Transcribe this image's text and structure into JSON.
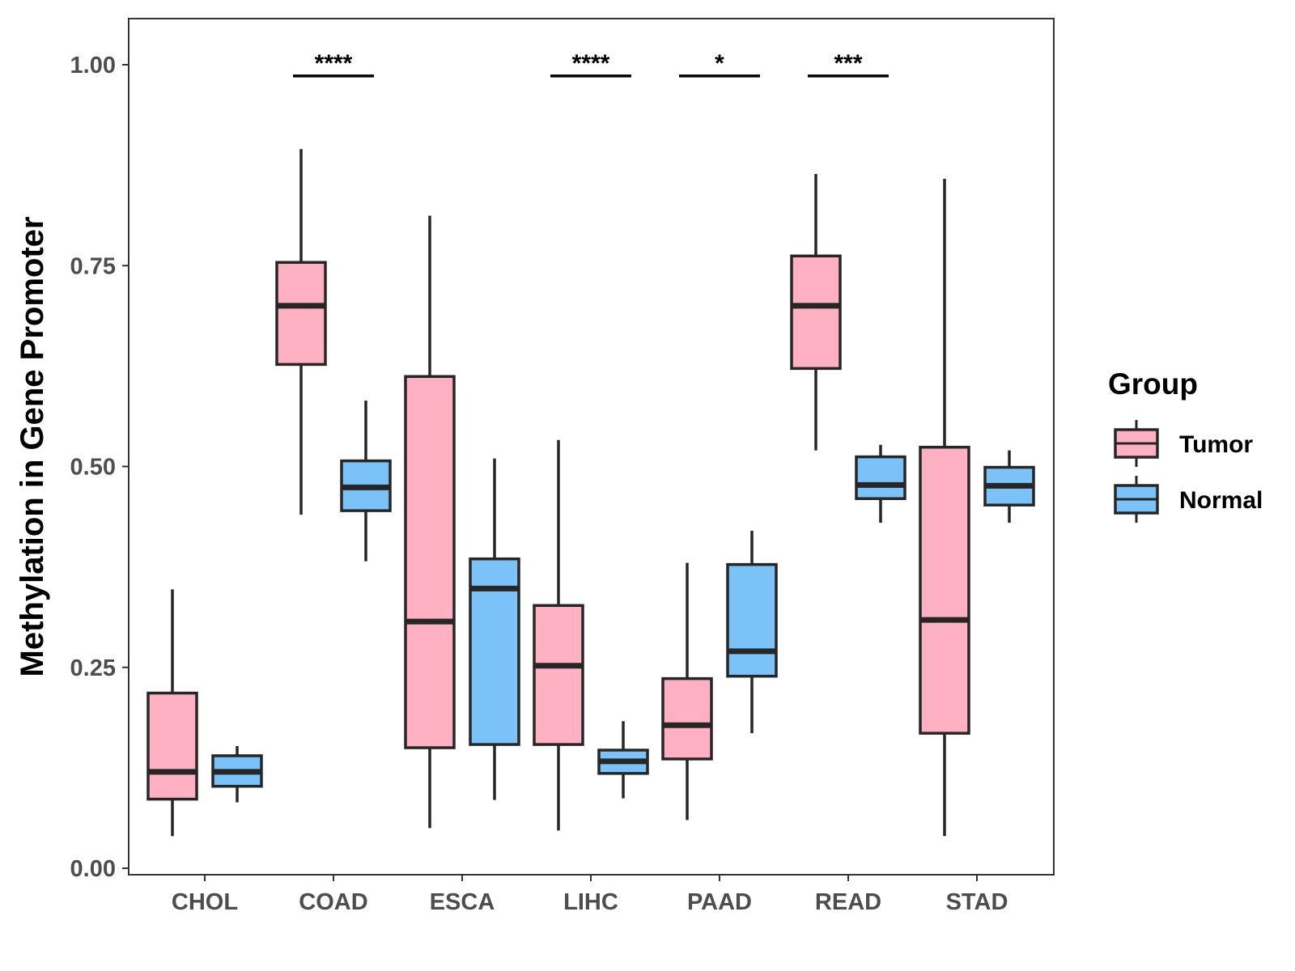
{
  "chart_data": {
    "type": "boxplot",
    "ylabel": "Methylation in Gene Promoter",
    "xlabel": "",
    "ylim": [
      0,
      1.05
    ],
    "yticks": [
      "0.00",
      "0.25",
      "0.50",
      "0.75",
      "1.00"
    ],
    "ytick_values": [
      0,
      0.25,
      0.5,
      0.75,
      1.0
    ],
    "categories": [
      "CHOL",
      "COAD",
      "ESCA",
      "LIHC",
      "PAAD",
      "READ",
      "STAD"
    ],
    "legend": {
      "title": "Group",
      "position": "right"
    },
    "series": [
      {
        "name": "Tumor",
        "color": "#ffb0c2",
        "boxes": [
          {
            "min": 0.04,
            "q1": 0.086,
            "median": 0.12,
            "q3": 0.218,
            "max": 0.347
          },
          {
            "min": 0.44,
            "q1": 0.627,
            "median": 0.7,
            "q3": 0.754,
            "max": 0.895
          },
          {
            "min": 0.05,
            "q1": 0.15,
            "median": 0.307,
            "q3": 0.612,
            "max": 0.812
          },
          {
            "min": 0.047,
            "q1": 0.154,
            "median": 0.252,
            "q3": 0.327,
            "max": 0.533
          },
          {
            "min": 0.06,
            "q1": 0.136,
            "median": 0.178,
            "q3": 0.236,
            "max": 0.38
          },
          {
            "min": 0.52,
            "q1": 0.622,
            "median": 0.7,
            "q3": 0.762,
            "max": 0.864
          },
          {
            "min": 0.04,
            "q1": 0.168,
            "median": 0.309,
            "q3": 0.524,
            "max": 0.858
          }
        ]
      },
      {
        "name": "Normal",
        "color": "#7ac2f7",
        "boxes": [
          {
            "min": 0.082,
            "q1": 0.102,
            "median": 0.12,
            "q3": 0.14,
            "max": 0.152
          },
          {
            "min": 0.382,
            "q1": 0.445,
            "median": 0.474,
            "q3": 0.507,
            "max": 0.582
          },
          {
            "min": 0.085,
            "q1": 0.154,
            "median": 0.348,
            "q3": 0.385,
            "max": 0.51
          },
          {
            "min": 0.087,
            "q1": 0.118,
            "median": 0.133,
            "q3": 0.147,
            "max": 0.183
          },
          {
            "min": 0.168,
            "q1": 0.239,
            "median": 0.27,
            "q3": 0.378,
            "max": 0.42
          },
          {
            "min": 0.43,
            "q1": 0.46,
            "median": 0.477,
            "q3": 0.512,
            "max": 0.527
          },
          {
            "min": 0.43,
            "q1": 0.452,
            "median": 0.476,
            "q3": 0.499,
            "max": 0.52
          }
        ]
      }
    ],
    "significance": [
      {
        "category": "COAD",
        "label": "****",
        "y": 0.986
      },
      {
        "category": "LIHC",
        "label": "****",
        "y": 0.986
      },
      {
        "category": "PAAD",
        "label": "*",
        "y": 0.986
      },
      {
        "category": "READ",
        "label": "***",
        "y": 0.986
      }
    ]
  }
}
